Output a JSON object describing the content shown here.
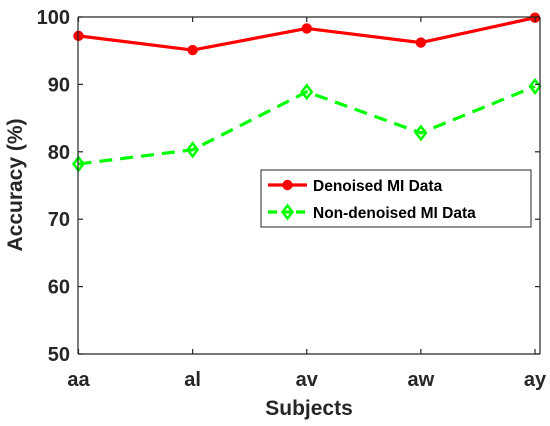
{
  "chart_data": {
    "type": "line",
    "categories": [
      "aa",
      "al",
      "av",
      "aw",
      "ay"
    ],
    "xlabel": "Subjects",
    "ylabel": "Accuracy (%)",
    "ylim": [
      50,
      100
    ],
    "yticks": [
      50,
      60,
      70,
      80,
      90,
      100
    ],
    "grid": false,
    "legend": "center-right",
    "series": [
      {
        "name": "Denoised MI Data",
        "values": [
          97.2,
          95.1,
          98.3,
          96.2,
          99.9
        ],
        "color": "#ff0000",
        "line_style": "solid",
        "marker": "circle"
      },
      {
        "name": "Non-denoised MI Data",
        "values": [
          78.2,
          80.3,
          88.9,
          82.8,
          89.7
        ],
        "color": "#00ff00",
        "line_style": "dashed",
        "marker": "diamond"
      }
    ]
  }
}
